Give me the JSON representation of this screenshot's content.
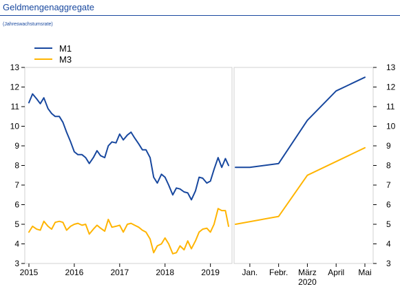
{
  "title": "Geldmengenaggregate",
  "subtitle": "(Jahreswachstumsrate)",
  "chart_data": {
    "type": "line",
    "ylim": [
      3,
      13
    ],
    "yticks": [
      3,
      4,
      5,
      6,
      7,
      8,
      9,
      10,
      11,
      12,
      13
    ],
    "grid": false,
    "legend_position": "top-left",
    "colors": {
      "M1": "#17479e",
      "M3": "#ffb400"
    },
    "panels": [
      {
        "x_start": 2015.0,
        "x_end": 2019.4,
        "xticks": [
          {
            "x": 2015,
            "label": "2015"
          },
          {
            "x": 2016,
            "label": "2016"
          },
          {
            "x": 2017,
            "label": "2017"
          },
          {
            "x": 2018,
            "label": "2018"
          },
          {
            "x": 2019,
            "label": "2019"
          }
        ],
        "series": [
          {
            "name": "M1",
            "x": [
              2015.0,
              2015.08,
              2015.17,
              2015.25,
              2015.33,
              2015.42,
              2015.5,
              2015.58,
              2015.67,
              2015.75,
              2015.83,
              2015.92,
              2016.0,
              2016.08,
              2016.17,
              2016.25,
              2016.33,
              2016.42,
              2016.5,
              2016.58,
              2016.67,
              2016.75,
              2016.83,
              2016.92,
              2017.0,
              2017.08,
              2017.17,
              2017.25,
              2017.33,
              2017.42,
              2017.5,
              2017.58,
              2017.67,
              2017.75,
              2017.83,
              2017.92,
              2018.0,
              2018.08,
              2018.17,
              2018.25,
              2018.33,
              2018.42,
              2018.5,
              2018.58,
              2018.67,
              2018.75,
              2018.83,
              2018.92,
              2019.0,
              2019.08,
              2019.17,
              2019.25,
              2019.33,
              2019.4
            ],
            "values": [
              11.2,
              11.65,
              11.4,
              11.15,
              11.45,
              10.9,
              10.65,
              10.5,
              10.5,
              10.2,
              9.7,
              9.2,
              8.7,
              8.55,
              8.55,
              8.4,
              8.1,
              8.4,
              8.75,
              8.5,
              8.4,
              9.0,
              9.2,
              9.15,
              9.6,
              9.3,
              9.55,
              9.7,
              9.4,
              9.1,
              8.8,
              8.8,
              8.4,
              7.4,
              7.1,
              7.55,
              7.4,
              7.0,
              6.5,
              6.85,
              6.8,
              6.65,
              6.6,
              6.25,
              6.7,
              7.4,
              7.35,
              7.1,
              7.2,
              7.8,
              8.4,
              7.9,
              8.35,
              8.0
            ]
          },
          {
            "name": "M3",
            "x": [
              2015.0,
              2015.08,
              2015.17,
              2015.25,
              2015.33,
              2015.42,
              2015.5,
              2015.58,
              2015.67,
              2015.75,
              2015.83,
              2015.92,
              2016.0,
              2016.08,
              2016.17,
              2016.25,
              2016.33,
              2016.42,
              2016.5,
              2016.58,
              2016.67,
              2016.75,
              2016.83,
              2016.92,
              2017.0,
              2017.08,
              2017.17,
              2017.25,
              2017.33,
              2017.42,
              2017.5,
              2017.58,
              2017.67,
              2017.75,
              2017.83,
              2017.92,
              2018.0,
              2018.08,
              2018.17,
              2018.25,
              2018.33,
              2018.42,
              2018.5,
              2018.58,
              2018.67,
              2018.75,
              2018.83,
              2018.92,
              2019.0,
              2019.08,
              2019.17,
              2019.25,
              2019.33,
              2019.4
            ],
            "values": [
              4.6,
              4.9,
              4.75,
              4.7,
              5.15,
              4.9,
              4.75,
              5.1,
              5.15,
              5.1,
              4.7,
              4.9,
              5.0,
              5.05,
              4.95,
              5.0,
              4.5,
              4.75,
              4.95,
              4.8,
              4.65,
              5.25,
              4.85,
              4.9,
              4.95,
              4.6,
              5.0,
              5.05,
              4.95,
              4.85,
              4.7,
              4.6,
              4.25,
              3.55,
              3.9,
              4.0,
              4.3,
              4.0,
              3.5,
              3.55,
              3.9,
              3.7,
              4.15,
              3.75,
              4.15,
              4.6,
              4.75,
              4.8,
              4.6,
              5.0,
              5.8,
              5.7,
              5.7,
              4.9
            ]
          }
        ]
      },
      {
        "x_start": 0,
        "x_end": 4.5,
        "xticks": [
          {
            "x": 0.5,
            "label": "Jan."
          },
          {
            "x": 1.5,
            "label": "Febr."
          },
          {
            "x": 2.5,
            "label": "März",
            "sublabel": "2020"
          },
          {
            "x": 3.5,
            "label": "April"
          },
          {
            "x": 4.5,
            "label": "Mai"
          }
        ],
        "series": [
          {
            "name": "M1",
            "x": [
              0,
              0.5,
              1.5,
              2.5,
              3.5,
              4.5
            ],
            "values": [
              7.9,
              7.9,
              8.1,
              10.3,
              11.8,
              12.5
            ]
          },
          {
            "name": "M3",
            "x": [
              0,
              1.5,
              2.5,
              3.5,
              4.5
            ],
            "values": [
              5.0,
              5.4,
              7.5,
              8.2,
              8.9
            ]
          }
        ]
      }
    ]
  }
}
